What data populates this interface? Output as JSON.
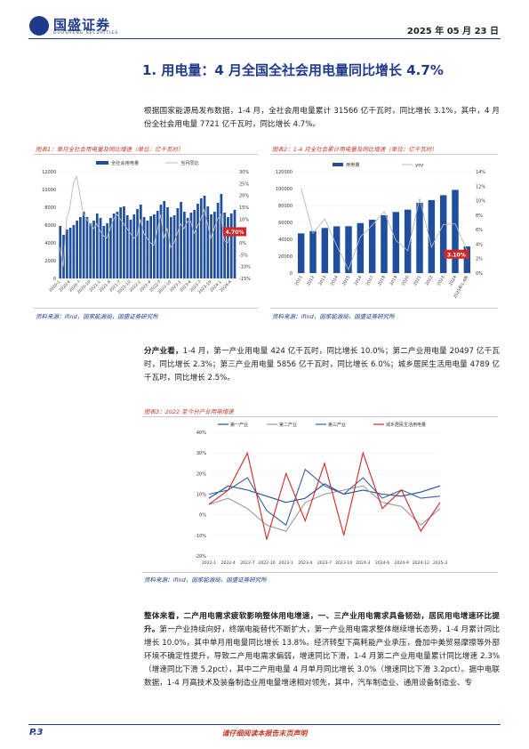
{
  "header": {
    "brand": "国盛证券",
    "brand_sub": "GUOSHENG SECURITIES",
    "date": "2025 年 05 月 23 日"
  },
  "section": {
    "title": "1. 用电量：4 月全国全社会用电量同比增长 4.7%"
  },
  "intro": "根据国家能源局发布数据，1-4 月，全社会用电量累计 31566 亿千瓦时，同比增长 3.1%，其中，4 月份全社会用电量 7721 亿千瓦时，同比增长 4.7%。",
  "figure1": {
    "title": "图表1：单月全社会用电量及同比增速（单位：亿千瓦时）",
    "source": "资料来源：ifind，国家能源局，国盛证券研究所"
  },
  "figure2": {
    "title": "图表2：1-4 月全社会累计用电量及同比增速（单位：亿千瓦时）",
    "source": "资料来源：ifind，国家能源局，国盛证券研究所"
  },
  "para2": {
    "lead": "分产业看，",
    "text": "1-4 月，第一产业用电量 424 亿千瓦时，同比增长 10.0%；第二产业用电量 20497 亿千瓦时，同比增长 2.3%；第三产业用电量 5856 亿千瓦时，同比增长 6.0%；城乡居民生活用电量 4789 亿千瓦时，同比增长 2.5%。"
  },
  "figure3": {
    "title": "图表3：2022 至今分产业用电增速",
    "source": "资料来源：ifind，国家能源局，国盛证券研究所"
  },
  "para3": {
    "lead": "整体来看，二产用电需求疲软影响整体用电增速，一、三产业用电需求具备韧劲，居民用电增速环比提升。",
    "text": "第一产业持续向好，终端电能替代不断扩大，第一产业用电需求整体继续增长态势，1-4 月累计同比增长 10.0%，其中单月用电量同比增长 13.8%。经济转型下高耗能产业承压，叠加中美贸易摩擦等外部环境不确定性提升，导致二产用电需求偏弱，增速同比下滑，1-4 月第二产业用电量累计同比增速 2.3%（增速同比下滑 5.2pct），其中二产用电量 4 月单月同比增长 3.0%（增速同比下滑 3.2pct）。据中电联数据，1-4 月高技术及装备制造业用电量增速相对领先，其中，汽车制造业、通用设备制造业、专"
  },
  "footer": {
    "page": "P.3",
    "disclaimer": "请仔细阅读本报告末页声明"
  },
  "colors": {
    "brand": "#1f3a8a",
    "accent": "#c0392b",
    "bar": "#1f4e9e",
    "line": "#b5b5b5"
  },
  "chart_data": [
    {
      "type": "bar",
      "title": "图表1：单月全社会用电量及同比增速（单位：亿千瓦时）",
      "series": [
        {
          "name": "全社会用电量",
          "axis": "left",
          "values": [
            5900,
            4900,
            5500,
            5700,
            6000,
            6500,
            6900,
            7500,
            6900,
            6200,
            6500,
            7300,
            6800,
            5900,
            6200,
            6800,
            7300,
            7500,
            8000,
            8100,
            7100,
            6600,
            7200,
            7800,
            8300,
            6900,
            6500,
            7000,
            7200,
            7600,
            8300,
            8700,
            8000,
            6900,
            7100,
            7900,
            8600,
            7500,
            6800,
            7400,
            7700,
            8400,
            9000,
            9300,
            8100,
            7200,
            7500,
            8500,
            9500,
            7400,
            6900,
            7300,
            7721
          ]
        },
        {
          "name": "当月同比",
          "axis": "right",
          "values": [
            -2,
            -10,
            10,
            15,
            25,
            28,
            20,
            12,
            10,
            8,
            6,
            8,
            5,
            3,
            2,
            6,
            10,
            12,
            10,
            8,
            6,
            4,
            2,
            3,
            10,
            4,
            2,
            0,
            -1,
            5,
            12,
            2,
            6,
            -2,
            0,
            4,
            8,
            6,
            9,
            9,
            4,
            7,
            10,
            14,
            8,
            2,
            6,
            10,
            12,
            1,
            0,
            4.8,
            4.7
          ]
        }
      ],
      "ylim_left": [
        0,
        12000
      ],
      "ylim_right": [
        -15,
        30
      ],
      "annotation": "4.70%"
    },
    {
      "type": "bar",
      "title": "图表2：1-4 月全社会累计用电量及同比增速（单位：亿千瓦时）",
      "categories": [
        "2011",
        "2012",
        "2013",
        "2014",
        "2015",
        "2016",
        "2017",
        "2018",
        "2019",
        "2020",
        "2021",
        "2022",
        "2023",
        "2024",
        "2025年1-4月"
      ],
      "series": [
        {
          "name": "用电量",
          "axis": "left",
          "values": [
            47000,
            49700,
            53400,
            55300,
            55500,
            59200,
            63100,
            68400,
            72300,
            75100,
            83100,
            86400,
            92200,
            98500,
            31566
          ]
        },
        {
          "name": "yoy",
          "axis": "right",
          "values": [
            11.7,
            5.5,
            7.5,
            3.8,
            0.5,
            5.0,
            6.6,
            8.5,
            4.5,
            3.1,
            10.3,
            3.6,
            6.7,
            6.8,
            3.1
          ]
        }
      ],
      "ylim_left": [
        0,
        120000
      ],
      "ylim_right": [
        0,
        14
      ],
      "annotation": "3.10%"
    },
    {
      "type": "line",
      "title": "图表3：2022 至今分产业用电增速",
      "x": [
        "2022-1",
        "2022-4",
        "2022-7",
        "2022-10",
        "2023-1",
        "2023-4",
        "2023-7",
        "2023-10",
        "2024-3",
        "2024-6",
        "2024-9",
        "2024-12",
        "2025-3"
      ],
      "series": [
        {
          "name": "第一产业",
          "color": "#1f4e9e",
          "values": [
            8,
            14,
            12,
            9,
            6,
            8,
            15,
            10,
            12,
            10,
            9,
            11,
            14
          ]
        },
        {
          "name": "第二产业",
          "color": "#9a9a9a",
          "values": [
            5,
            8,
            3,
            -5,
            -8,
            6,
            10,
            12,
            14,
            6,
            4,
            -5,
            3
          ]
        },
        {
          "name": "第三产业",
          "color": "#3b5fa0",
          "values": [
            10,
            12,
            18,
            2,
            -5,
            22,
            14,
            10,
            18,
            8,
            12,
            8,
            9
          ]
        },
        {
          "name": "城乡居民生活用电量",
          "color": "#d02828",
          "values": [
            5,
            12,
            30,
            -12,
            20,
            -3,
            25,
            -10,
            30,
            3,
            12,
            -8,
            6
          ]
        }
      ],
      "ylim": [
        -20,
        40
      ]
    }
  ]
}
